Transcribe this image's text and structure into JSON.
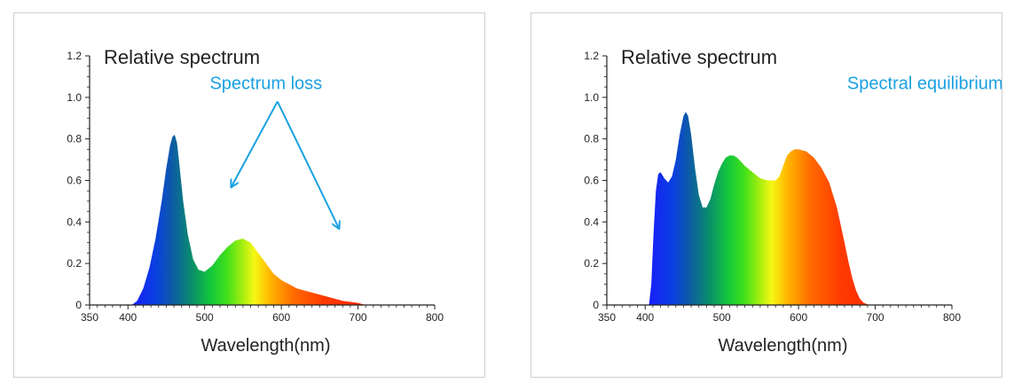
{
  "chart_data": [
    {
      "type": "area",
      "title": "Relative spectrum",
      "xlabel": "Wavelength(nm)",
      "ylabel": "",
      "xlim": [
        350,
        800
      ],
      "ylim": [
        0,
        1.2
      ],
      "xticks": [
        350,
        400,
        500,
        600,
        700,
        800
      ],
      "x_tick_labels": [
        "350",
        "400",
        "500",
        "600",
        "700",
        "800"
      ],
      "yticks": [
        0,
        0.2,
        0.4,
        0.6,
        0.8,
        1.0,
        1.2
      ],
      "y_tick_labels": [
        "0",
        "0.2",
        "0.4",
        "0.6",
        "0.8",
        "1.0",
        "1.2"
      ],
      "fill": "visible-spectrum-gradient",
      "series": [
        {
          "x": [
            405,
            412,
            420,
            428,
            436,
            444,
            450,
            455,
            458,
            461,
            464,
            467,
            472,
            478,
            485,
            492,
            500,
            510,
            520,
            530,
            540,
            550,
            560,
            570,
            580,
            590,
            600,
            620,
            640,
            660,
            680,
            700,
            710
          ],
          "y": [
            0,
            0.02,
            0.08,
            0.18,
            0.32,
            0.5,
            0.66,
            0.77,
            0.81,
            0.82,
            0.78,
            0.68,
            0.5,
            0.34,
            0.22,
            0.17,
            0.16,
            0.19,
            0.24,
            0.28,
            0.31,
            0.32,
            0.3,
            0.25,
            0.2,
            0.15,
            0.12,
            0.08,
            0.06,
            0.04,
            0.02,
            0.01,
            0
          ]
        }
      ],
      "annotations": [
        {
          "text": "Spectrum loss",
          "color": "#1ba1e2",
          "x": 580,
          "y": 1.04
        },
        {
          "type": "arrow",
          "color": "#1ba1e2",
          "from": [
            595,
            0.98
          ],
          "to": [
            535,
            0.57
          ]
        },
        {
          "type": "arrow",
          "color": "#1ba1e2",
          "from": [
            595,
            0.98
          ],
          "to": [
            675,
            0.37
          ]
        }
      ]
    },
    {
      "type": "area",
      "title": "Relative spectrum",
      "xlabel": "Wavelength(nm)",
      "ylabel": "",
      "xlim": [
        350,
        800
      ],
      "ylim": [
        0,
        1.2
      ],
      "xticks": [
        350,
        400,
        500,
        600,
        700,
        800
      ],
      "x_tick_labels": [
        "350",
        "400",
        "500",
        "600",
        "700",
        "800"
      ],
      "yticks": [
        0,
        0.2,
        0.4,
        0.6,
        0.8,
        1.0,
        1.2
      ],
      "y_tick_labels": [
        "0",
        "0.2",
        "0.4",
        "0.6",
        "0.8",
        "1.0",
        "1.2"
      ],
      "fill": "visible-spectrum-gradient",
      "series": [
        {
          "x": [
            405,
            408,
            411,
            414,
            417,
            420,
            425,
            430,
            435,
            440,
            445,
            450,
            453,
            456,
            460,
            465,
            470,
            475,
            480,
            485,
            490,
            495,
            500,
            505,
            510,
            515,
            520,
            525,
            530,
            540,
            550,
            560,
            570,
            575,
            580,
            585,
            590,
            595,
            600,
            610,
            620,
            630,
            640,
            650,
            660,
            665,
            670,
            675,
            680,
            685,
            690,
            695
          ],
          "y": [
            0,
            0.1,
            0.35,
            0.55,
            0.63,
            0.64,
            0.61,
            0.59,
            0.62,
            0.7,
            0.82,
            0.91,
            0.93,
            0.91,
            0.82,
            0.66,
            0.53,
            0.47,
            0.47,
            0.51,
            0.58,
            0.64,
            0.68,
            0.71,
            0.72,
            0.72,
            0.71,
            0.69,
            0.67,
            0.64,
            0.61,
            0.6,
            0.6,
            0.62,
            0.67,
            0.72,
            0.74,
            0.75,
            0.75,
            0.74,
            0.71,
            0.66,
            0.59,
            0.47,
            0.3,
            0.21,
            0.13,
            0.07,
            0.03,
            0.01,
            0.003,
            0
          ]
        }
      ],
      "annotations": [
        {
          "text": "Spectral equilibrium",
          "color": "#1ba1e2",
          "x": 765,
          "y": 1.04
        }
      ]
    }
  ]
}
